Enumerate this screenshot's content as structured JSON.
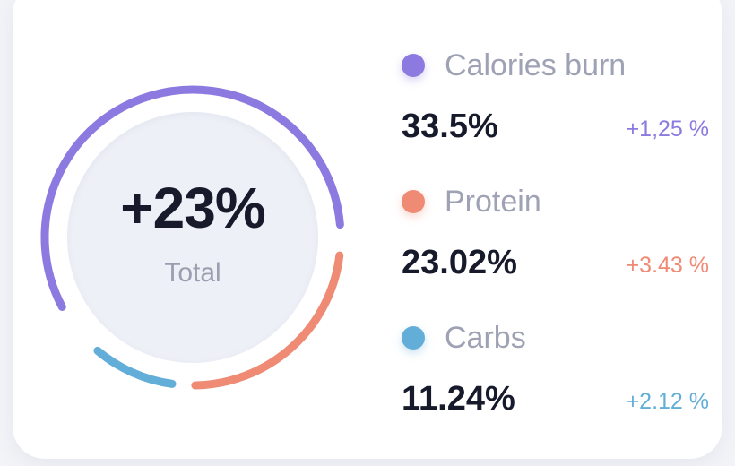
{
  "summary": {
    "total_value": "+23%",
    "total_label": "Total"
  },
  "legend": [
    {
      "name": "Calories burn",
      "value": "33.5%",
      "change": "+1,25 %",
      "color": "#8d7ae0",
      "shadow": "rgba(141,122,224,0.35)"
    },
    {
      "name": "Protein",
      "value": "23.02%",
      "change": "+3.43 %",
      "color": "#ef8a75",
      "shadow": "rgba(239,138,117,0.35)"
    },
    {
      "name": "Carbs",
      "value": "11.24%",
      "change": "+2.12 %",
      "color": "#63aed8",
      "shadow": "rgba(99,174,216,0.35)"
    }
  ],
  "ring": {
    "segments": [
      {
        "name": "Calories burn",
        "color": "#8d7ae0",
        "start_deg": -47,
        "end_deg": 175
      },
      {
        "name": "Protein",
        "color": "#ef8a75",
        "start_deg": 7,
        "end_deg": 89
      },
      {
        "name": "Carbs",
        "color": "#63aed8",
        "start_deg": 98,
        "end_deg": 130
      }
    ]
  }
}
